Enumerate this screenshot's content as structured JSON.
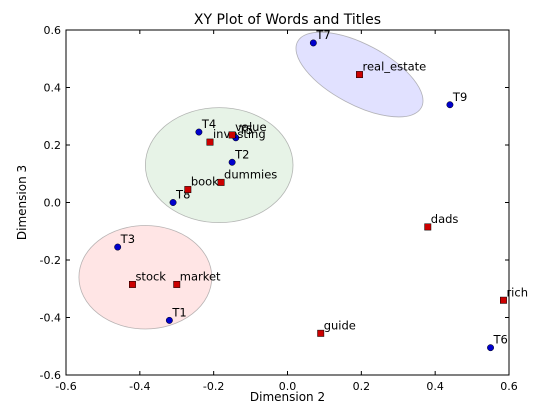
{
  "chart_data": {
    "type": "scatter",
    "title": "XY Plot of Words and Titles",
    "xlabel": "Dimension 2",
    "ylabel": "Dimension 3",
    "xlim": [
      -0.6,
      0.6
    ],
    "ylim": [
      -0.6,
      0.6
    ],
    "xticks": [
      "-0.6",
      "-0.4",
      "-0.2",
      "0.0",
      "0.2",
      "0.4",
      "0.6"
    ],
    "yticks": [
      "-0.6",
      "-0.4",
      "-0.2",
      "0.0",
      "0.2",
      "0.4",
      "0.6"
    ],
    "grid": false,
    "series": [
      {
        "marker": "circle",
        "color": "#0000cc",
        "points": [
          {
            "label": "T1",
            "x": -0.32,
            "y": -0.41
          },
          {
            "label": "T2",
            "x": -0.15,
            "y": 0.14
          },
          {
            "label": "T3",
            "x": -0.46,
            "y": -0.155
          },
          {
            "label": "T4",
            "x": -0.24,
            "y": 0.245
          },
          {
            "label": "T5",
            "x": -0.14,
            "y": 0.225
          },
          {
            "label": "T6",
            "x": 0.55,
            "y": -0.505
          },
          {
            "label": "T7",
            "x": 0.07,
            "y": 0.555
          },
          {
            "label": "T8",
            "x": -0.31,
            "y": 0.0
          },
          {
            "label": "T9",
            "x": 0.44,
            "y": 0.34
          }
        ]
      },
      {
        "marker": "square",
        "color": "#cc0000",
        "points": [
          {
            "label": "book",
            "x": -0.27,
            "y": 0.045
          },
          {
            "label": "dads",
            "x": 0.38,
            "y": -0.085
          },
          {
            "label": "dummies",
            "x": -0.18,
            "y": 0.07
          },
          {
            "label": "guide",
            "x": 0.09,
            "y": -0.455
          },
          {
            "label": "investing",
            "x": -0.21,
            "y": 0.21
          },
          {
            "label": "market",
            "x": -0.3,
            "y": -0.285
          },
          {
            "label": "real_estate",
            "x": 0.195,
            "y": 0.445
          },
          {
            "label": "rich",
            "x": 0.585,
            "y": -0.34
          },
          {
            "label": "stock",
            "x": -0.42,
            "y": -0.285
          },
          {
            "label": "value",
            "x": -0.15,
            "y": 0.235
          }
        ]
      }
    ],
    "clusters": [
      {
        "cx": 0.195,
        "cy": 0.445,
        "rx": 0.19,
        "ry": 0.105,
        "angle": 28,
        "color": "#b3b3ff"
      },
      {
        "cx": -0.185,
        "cy": 0.13,
        "rx": 0.2,
        "ry": 0.2,
        "angle": 0,
        "color": "#c2e0c2"
      },
      {
        "cx": -0.385,
        "cy": -0.26,
        "rx": 0.18,
        "ry": 0.18,
        "angle": 0,
        "color": "#ffbfbf"
      }
    ]
  }
}
